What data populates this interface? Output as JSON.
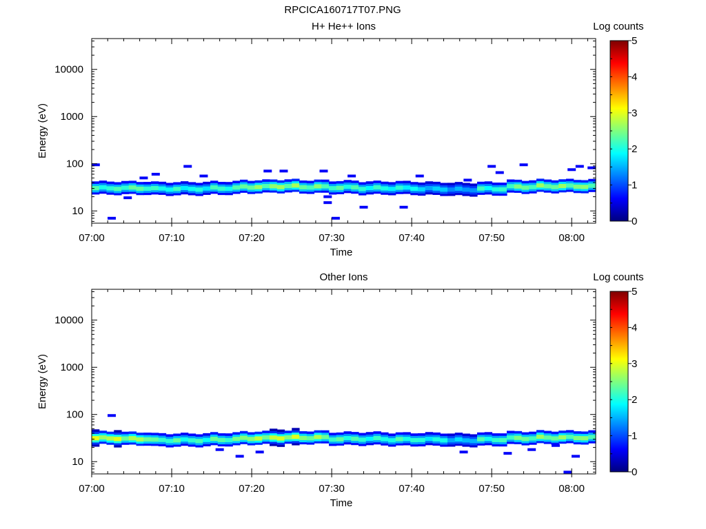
{
  "figure_title": "RPCICA160717T07.PNG",
  "colormap": [
    "#00007f",
    "#0000ff",
    "#007fff",
    "#00ffff",
    "#7fff7f",
    "#ffff00",
    "#ff7f00",
    "#ff0000",
    "#7f0000"
  ],
  "chart_data": [
    {
      "type": "heatmap",
      "title": "H+ He++ Ions",
      "xlabel": "Time",
      "ylabel": "Energy (eV)",
      "x_range": [
        "07:00",
        "08:03"
      ],
      "x_ticks": [
        "07:00",
        "07:10",
        "07:20",
        "07:30",
        "07:40",
        "07:50",
        "08:00"
      ],
      "y_scale": "log",
      "y_range": [
        5.5,
        45000
      ],
      "y_ticks": [
        "10",
        "100",
        "1000",
        "10000"
      ],
      "colorbar": {
        "label": "Log counts",
        "range": [
          0,
          5
        ],
        "ticks": [
          "0",
          "1",
          "2",
          "3",
          "4",
          "5"
        ]
      },
      "band": {
        "center_eV": [
          31,
          31,
          30,
          30,
          31,
          33,
          34,
          33,
          32,
          31,
          31,
          30,
          29,
          30,
          33,
          34,
          34
        ],
        "peak_log": [
          2.4,
          2.6,
          2.3,
          2.2,
          2.4,
          2.8,
          2.9,
          2.7,
          2.5,
          2.3,
          2.2,
          1.8,
          1.6,
          2.3,
          2.7,
          2.8,
          2.8
        ]
      },
      "sparse_points": [
        {
          "t": 0.5,
          "e": 95
        },
        {
          "t": 2.5,
          "e": 7
        },
        {
          "t": 4.5,
          "e": 19
        },
        {
          "t": 6.5,
          "e": 50
        },
        {
          "t": 8,
          "e": 60
        },
        {
          "t": 12,
          "e": 88
        },
        {
          "t": 14,
          "e": 55
        },
        {
          "t": 22,
          "e": 70
        },
        {
          "t": 24,
          "e": 70
        },
        {
          "t": 29,
          "e": 70
        },
        {
          "t": 29.5,
          "e": 20
        },
        {
          "t": 29.5,
          "e": 15
        },
        {
          "t": 30.5,
          "e": 7
        },
        {
          "t": 32.5,
          "e": 55
        },
        {
          "t": 34,
          "e": 12
        },
        {
          "t": 39,
          "e": 12
        },
        {
          "t": 41,
          "e": 55
        },
        {
          "t": 47,
          "e": 45
        },
        {
          "t": 50,
          "e": 88
        },
        {
          "t": 51,
          "e": 65
        },
        {
          "t": 54,
          "e": 95
        },
        {
          "t": 60,
          "e": 75
        },
        {
          "t": 61,
          "e": 88
        },
        {
          "t": 62.5,
          "e": 82
        }
      ]
    },
    {
      "type": "heatmap",
      "title": "Other Ions",
      "xlabel": "Time",
      "ylabel": "Energy (eV)",
      "x_range": [
        "07:00",
        "08:03"
      ],
      "x_ticks": [
        "07:00",
        "07:10",
        "07:20",
        "07:30",
        "07:40",
        "07:50",
        "08:00"
      ],
      "y_scale": "log",
      "y_range": [
        5.5,
        45000
      ],
      "y_ticks": [
        "10",
        "100",
        "1000",
        "10000"
      ],
      "colorbar": {
        "label": "Log counts",
        "range": [
          0,
          5
        ],
        "ticks": [
          "0",
          "1",
          "2",
          "3",
          "4",
          "5"
        ]
      },
      "band": {
        "center_eV": [
          32,
          31,
          29,
          29,
          30,
          32,
          33,
          33,
          31,
          31,
          30,
          30,
          29,
          30,
          32,
          33,
          33
        ],
        "peak_log": [
          3.2,
          3.0,
          2.5,
          2.4,
          2.6,
          3.0,
          3.2,
          2.9,
          2.5,
          2.3,
          2.4,
          2.2,
          1.8,
          2.4,
          2.7,
          2.8,
          2.8
        ]
      },
      "sparse_points": [
        {
          "t": 2.5,
          "e": 95
        },
        {
          "t": 16,
          "e": 18
        },
        {
          "t": 18.5,
          "e": 13
        },
        {
          "t": 21,
          "e": 16
        },
        {
          "t": 46.5,
          "e": 16
        },
        {
          "t": 52,
          "e": 15
        },
        {
          "t": 55,
          "e": 18
        },
        {
          "t": 58,
          "e": 22
        },
        {
          "t": 60.5,
          "e": 13
        },
        {
          "t": 59.5,
          "e": 6
        }
      ]
    }
  ]
}
